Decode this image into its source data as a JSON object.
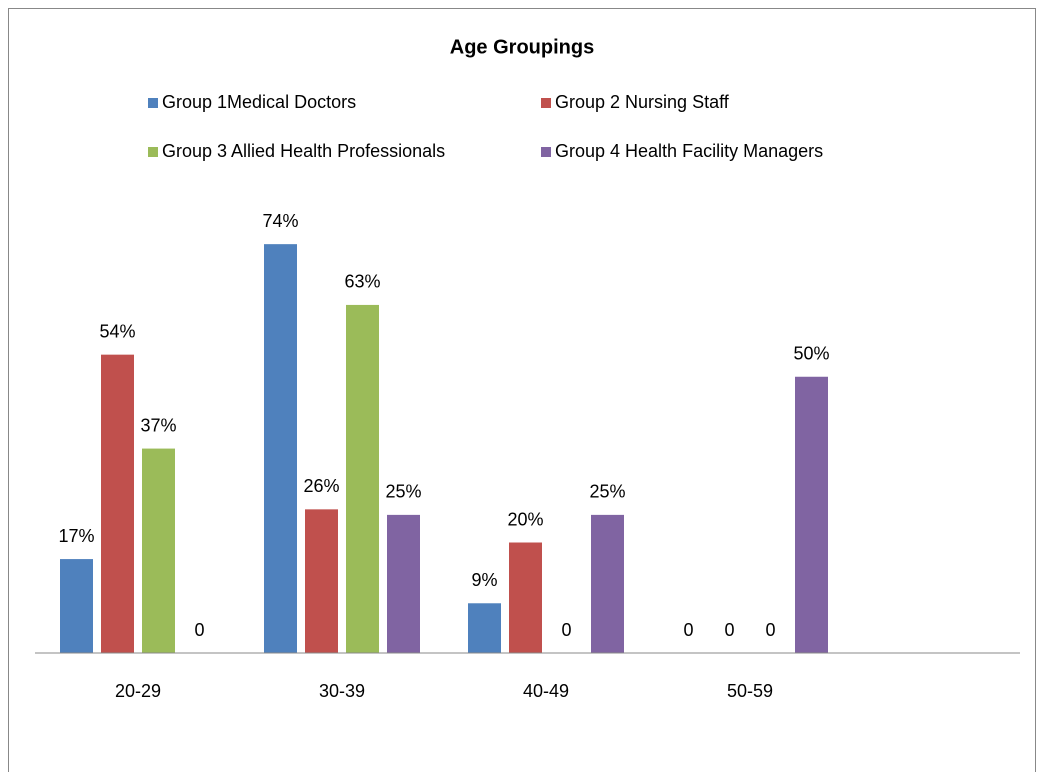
{
  "chart_data": {
    "type": "bar",
    "title": "Age Groupings",
    "categories": [
      "20-29",
      "30-39",
      "40-49",
      "50-59"
    ],
    "series": [
      {
        "name": "Group 1Medical Doctors",
        "color": "#4f81bd",
        "values": [
          17,
          74,
          9,
          0
        ],
        "value_labels": [
          "17%",
          "74%",
          "9%",
          "0"
        ]
      },
      {
        "name": "Group 2 Nursing Staff",
        "color": "#c0504d",
        "values": [
          54,
          26,
          20,
          0
        ],
        "value_labels": [
          "54%",
          "26%",
          "20%",
          "0"
        ]
      },
      {
        "name": "Group 3 Allied Health Professionals",
        "color": "#9bbb59",
        "values": [
          37,
          63,
          0,
          0
        ],
        "value_labels": [
          "37%",
          "63%",
          "0",
          "0"
        ]
      },
      {
        "name": "Group 4 Health Facility Managers",
        "color": "#8064a2",
        "values": [
          0,
          25,
          25,
          50
        ],
        "value_labels": [
          "0",
          "25%",
          "25%",
          "50%"
        ]
      }
    ],
    "ylim": [
      0,
      80
    ],
    "legend": "top"
  }
}
